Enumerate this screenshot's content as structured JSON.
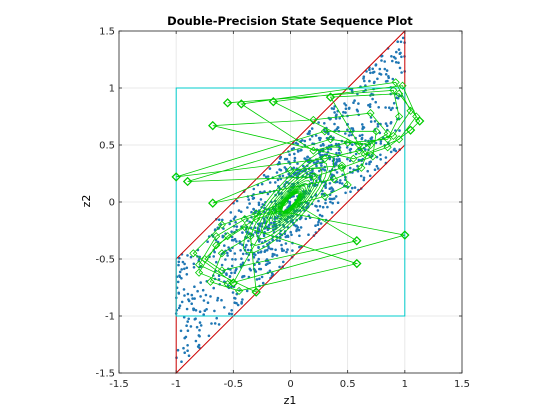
{
  "chart_data": {
    "type": "scatter",
    "title": "Double-Precision State Sequence Plot",
    "xlabel": "z1",
    "ylabel": "z2",
    "xlim": [
      -1.5,
      1.5
    ],
    "ylim": [
      -1.5,
      1.5
    ],
    "xticks": [
      "-1.5",
      "-1",
      "-0.5",
      "0",
      "0.5",
      "1",
      "1.5"
    ],
    "yticks": [
      "-1.5",
      "-1",
      "-0.5",
      "0",
      "0.5",
      "1",
      "1.5"
    ],
    "grid": true,
    "colors": {
      "points": "#1f77b4",
      "trajectory": "#00cc00",
      "region": "#cc0000",
      "box": "#00cccc"
    },
    "series": [
      {
        "type": "polygon",
        "points": [
          [
            -1,
            -1.5
          ],
          [
            -1,
            -0.5
          ],
          [
            1,
            1.5
          ],
          [
            1,
            0.5
          ]
        ]
      },
      {
        "type": "rect",
        "points": [
          [
            -1,
            -1
          ],
          [
            1,
            -1
          ],
          [
            1,
            1
          ],
          [
            -1,
            1
          ]
        ]
      },
      {
        "type": "trajectory-starts",
        "points": [
          [
            -0.55,
            0.87
          ],
          [
            -0.43,
            0.86
          ],
          [
            -0.15,
            0.88
          ],
          [
            0.35,
            0.92
          ],
          [
            -0.68,
            0.67
          ],
          [
            -1.0,
            0.22
          ],
          [
            -0.9,
            0.18
          ],
          [
            -0.68,
            -0.01
          ],
          [
            0.58,
            -0.34
          ],
          [
            1.0,
            -0.29
          ],
          [
            0.58,
            -0.54
          ],
          [
            -0.3,
            -0.79
          ],
          [
            -0.5,
            -0.71
          ],
          [
            1.13,
            0.71
          ],
          [
            1.05,
            0.63
          ]
        ]
      },
      {
        "type": "trajectory-path",
        "points": [
          [
            -0.55,
            0.87
          ],
          [
            0.9,
            0.98
          ],
          [
            0.95,
            0.75
          ],
          [
            0.85,
            0.55
          ],
          [
            0.5,
            0.52
          ],
          [
            0.2,
            0.45
          ],
          [
            -0.43,
            0.86
          ],
          [
            0.92,
            1.05
          ],
          [
            1.05,
            0.8
          ],
          [
            0.9,
            0.58
          ],
          [
            0.6,
            0.5
          ],
          [
            -0.15,
            0.88
          ],
          [
            0.98,
            1.02
          ],
          [
            1.1,
            0.75
          ],
          [
            0.95,
            0.55
          ],
          [
            0.65,
            0.42
          ],
          [
            0.35,
            0.92
          ],
          [
            0.95,
            0.95
          ],
          [
            1.13,
            0.71
          ],
          [
            1.05,
            0.63
          ],
          [
            0.85,
            0.48
          ],
          [
            0.55,
            0.38
          ],
          [
            -0.68,
            0.67
          ],
          [
            0.2,
            0.72
          ],
          [
            0.7,
            0.78
          ],
          [
            0.85,
            0.6
          ],
          [
            0.6,
            0.45
          ],
          [
            0.3,
            0.38
          ],
          [
            -1.0,
            0.22
          ],
          [
            0.3,
            0.62
          ],
          [
            0.75,
            0.62
          ],
          [
            0.72,
            0.4
          ],
          [
            0.45,
            0.3
          ],
          [
            0.2,
            0.22
          ],
          [
            -0.9,
            0.18
          ],
          [
            0.35,
            0.55
          ],
          [
            0.7,
            0.5
          ],
          [
            0.62,
            0.3
          ],
          [
            0.38,
            0.2
          ],
          [
            -0.68,
            -0.01
          ],
          [
            0.0,
            0.28
          ],
          [
            0.45,
            0.32
          ],
          [
            0.5,
            0.15
          ],
          [
            0.3,
            0.05
          ],
          [
            0.05,
            -0.02
          ],
          [
            0.58,
            -0.34
          ],
          [
            -0.6,
            -0.6
          ],
          [
            -0.75,
            -0.5
          ],
          [
            -0.55,
            -0.3
          ],
          [
            -0.3,
            -0.15
          ],
          [
            -0.1,
            -0.08
          ],
          [
            1.0,
            -0.29
          ],
          [
            -0.55,
            -0.72
          ],
          [
            -0.8,
            -0.62
          ],
          [
            -0.65,
            -0.38
          ],
          [
            -0.4,
            -0.22
          ],
          [
            0.58,
            -0.54
          ],
          [
            -0.45,
            -0.78
          ],
          [
            -0.7,
            -0.7
          ],
          [
            -0.6,
            -0.45
          ],
          [
            -0.35,
            -0.3
          ],
          [
            -0.3,
            -0.79
          ],
          [
            -0.8,
            -0.55
          ],
          [
            -0.65,
            -0.3
          ],
          [
            -0.4,
            -0.15
          ],
          [
            -0.15,
            -0.08
          ],
          [
            -0.5,
            -0.71
          ],
          [
            -0.85,
            -0.45
          ],
          [
            -0.6,
            -0.2
          ],
          [
            -0.3,
            -0.1
          ],
          [
            -0.05,
            0.0
          ]
        ]
      }
    ]
  }
}
